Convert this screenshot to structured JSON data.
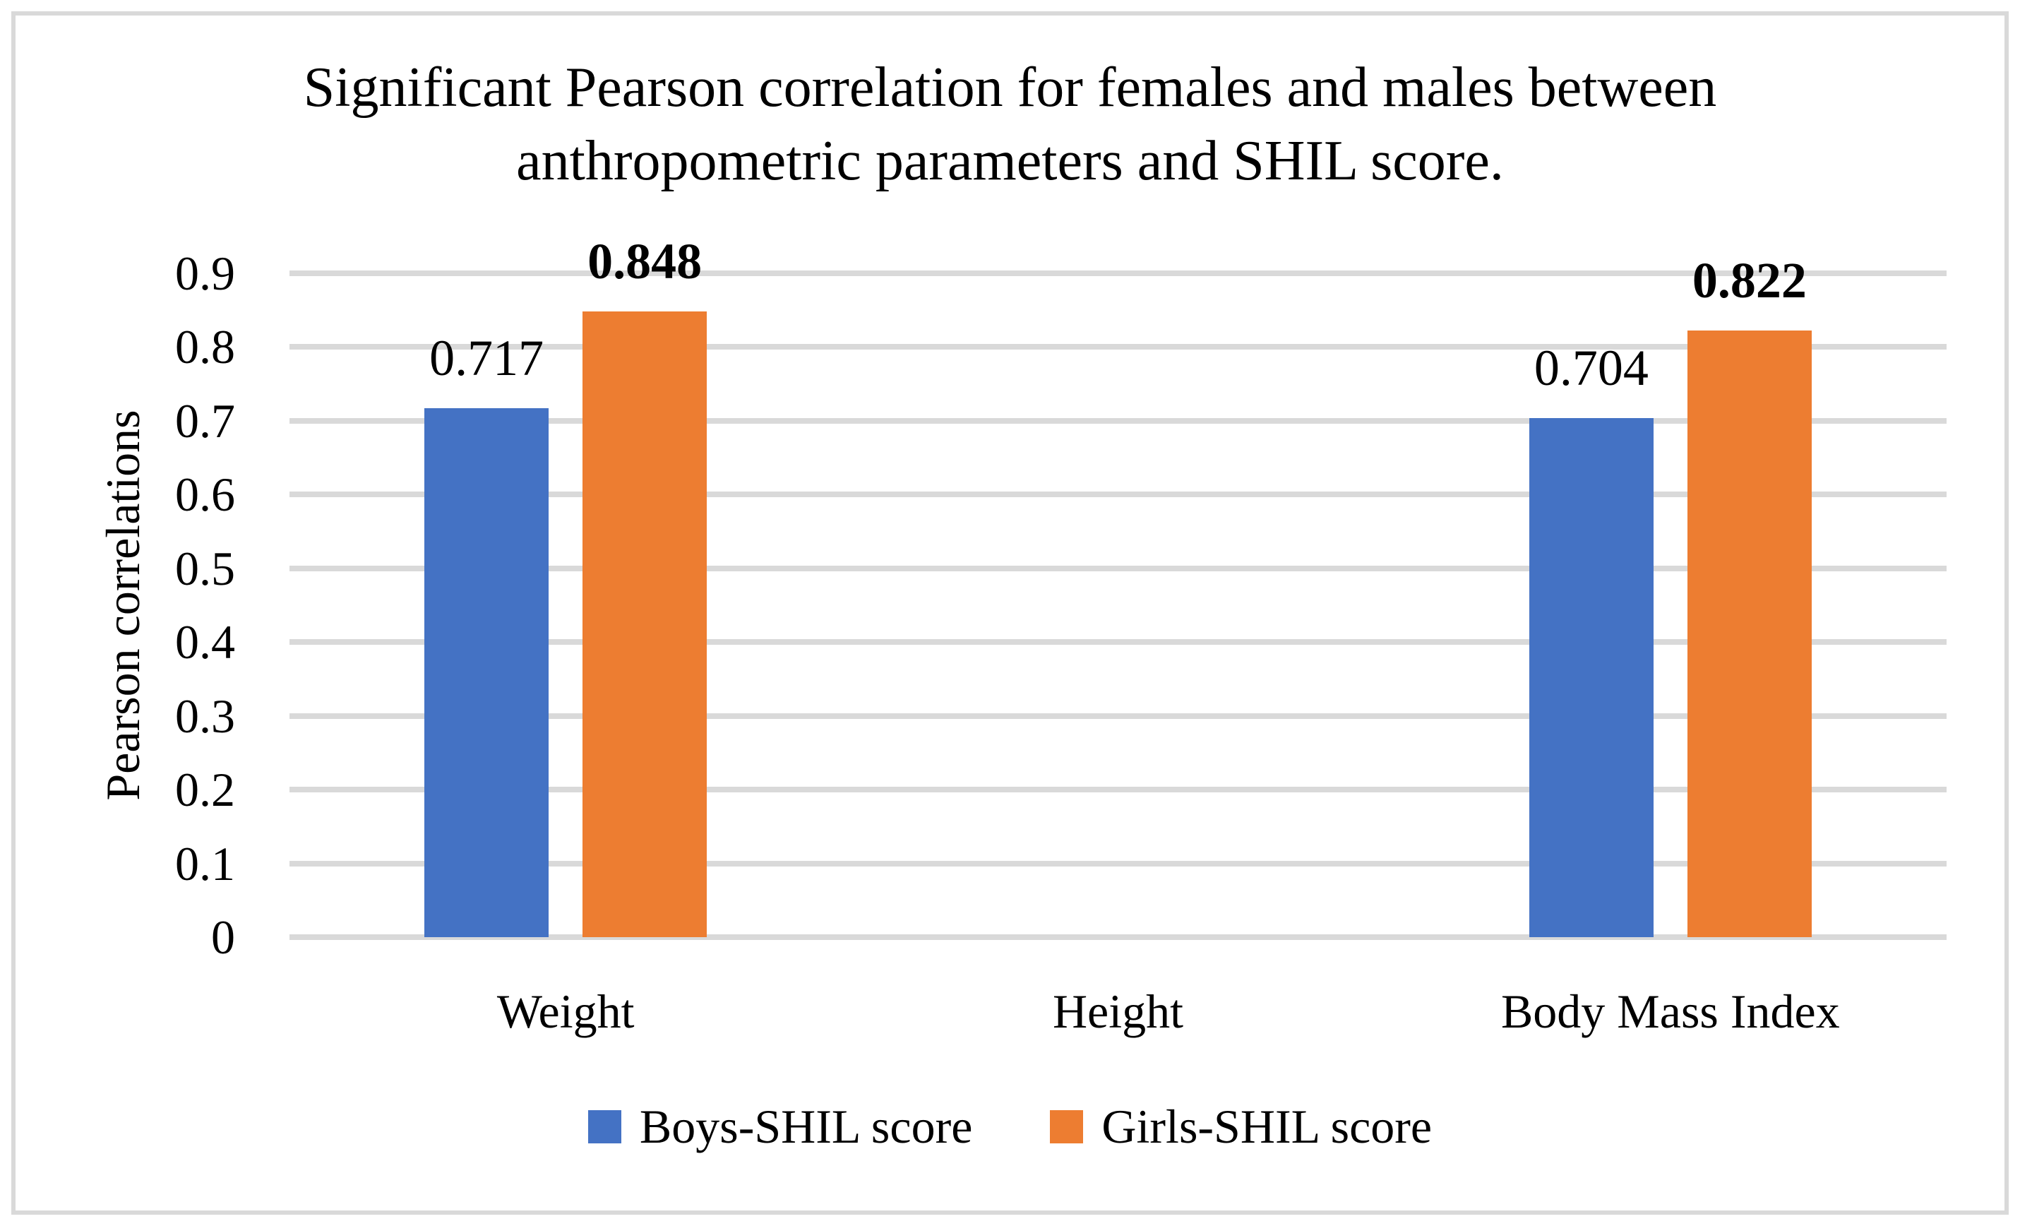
{
  "chart_data": {
    "type": "bar",
    "title": "Significant Pearson correlation for females and males between anthropometric parameters and SHIL score.",
    "title_lines": [
      "Significant Pearson correlation for females and males between",
      "anthropometric parameters and SHIL score."
    ],
    "ylabel": "Pearson correlations",
    "xlabel": "",
    "categories": [
      "Weight",
      "Height",
      "Body Mass Index"
    ],
    "series": [
      {
        "name": "Boys-SHIL score",
        "color": "#4472c4",
        "values": [
          0.717,
          null,
          0.704
        ],
        "data_labels": [
          "0.717",
          null,
          "0.704"
        ],
        "bold_labels": false
      },
      {
        "name": "Girls-SHIL score",
        "color": "#ed7d31",
        "values": [
          0.848,
          null,
          0.822
        ],
        "data_labels": [
          "0.848",
          null,
          "0.822"
        ],
        "bold_labels": true
      }
    ],
    "ylim": [
      0,
      0.9
    ],
    "ytick_step": 0.1,
    "ytick_labels": [
      "0.9",
      "0.8",
      "0.7",
      "0.6",
      "0.5",
      "0.4",
      "0.3",
      "0.2",
      "0.1",
      "0"
    ],
    "grid": true,
    "gridline_color": "#d9d9d9",
    "legend_position": "bottom",
    "text_color": "#000000",
    "background_color": "#ffffff"
  }
}
